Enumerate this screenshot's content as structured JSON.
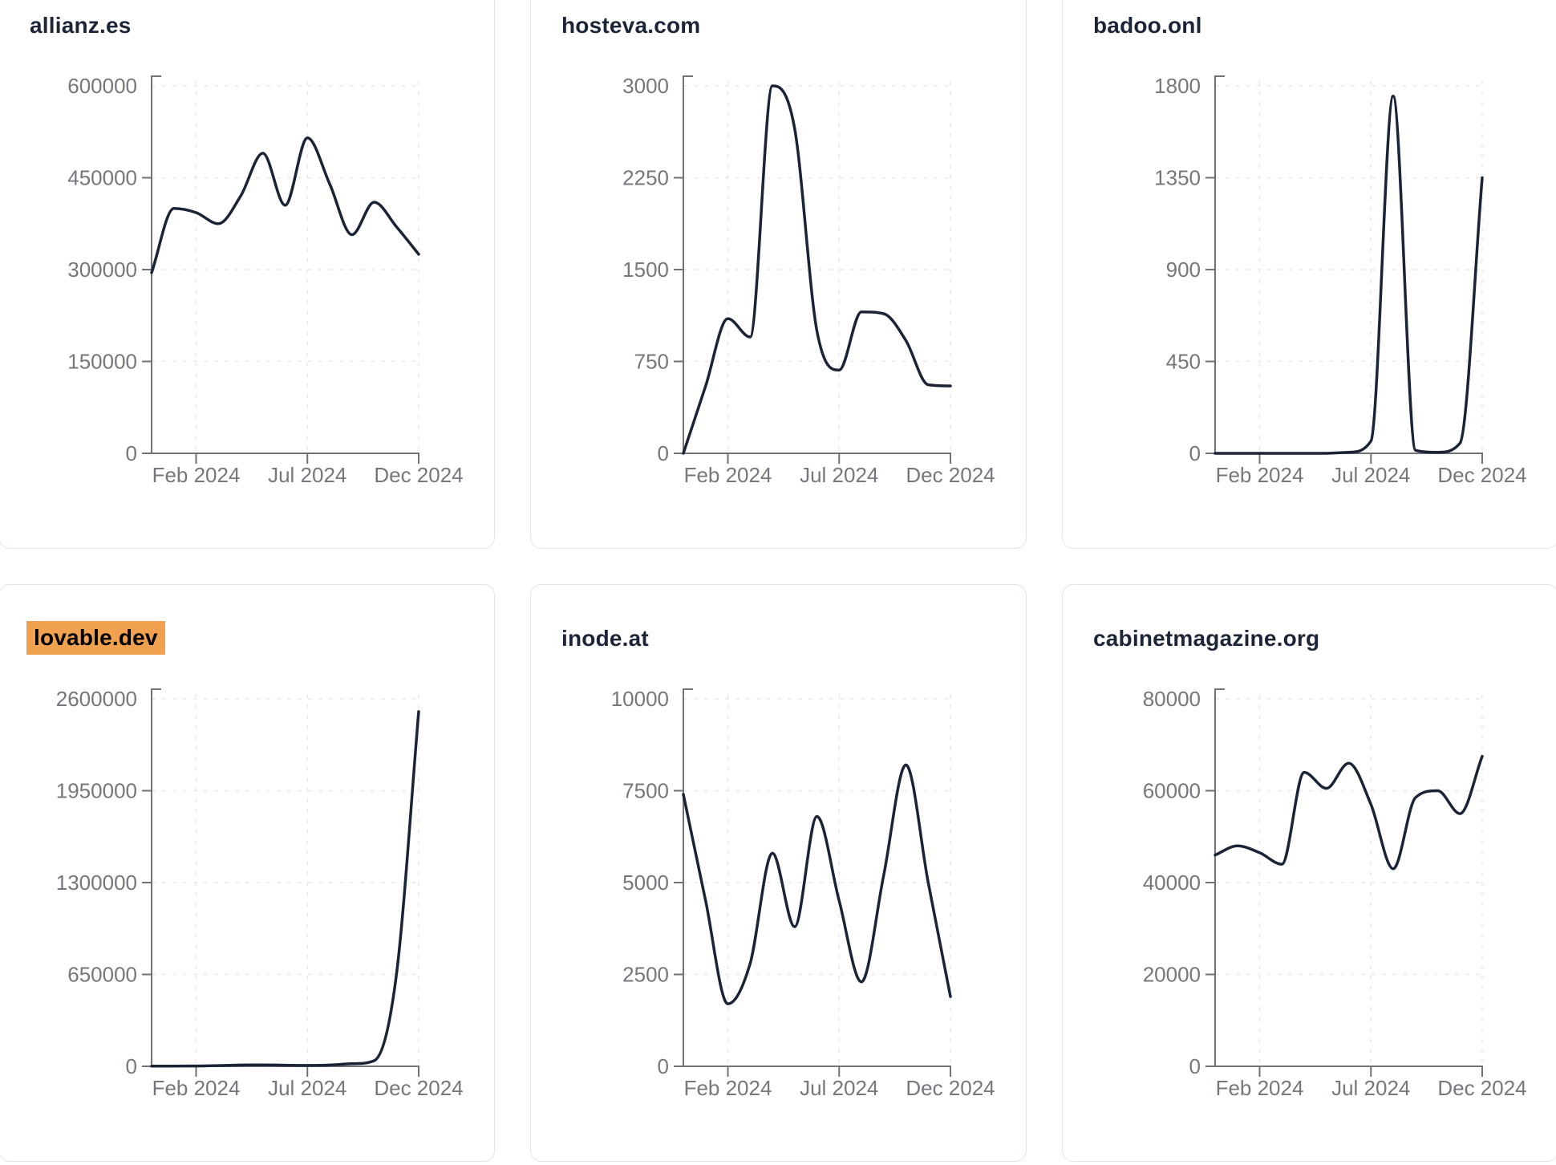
{
  "chart_data": {
    "type": "line",
    "layout": "small-multiples-grid-3x2",
    "x_axis": {
      "tick_labels": [
        "Feb 2024",
        "Jul 2024",
        "Dec 2024"
      ],
      "tick_point_indices": [
        2,
        7,
        12
      ],
      "range": "Dec 2023 - Dec 2024",
      "interval": "monthly",
      "points_per_series": 13,
      "grid": "dashed"
    },
    "style": {
      "line_color": "#1b2337",
      "grid_color": "#e9e9eb",
      "axis_color": "#6f7276",
      "tick_label_color": "#74777c",
      "title_color": "#1c2438",
      "highlight_bg": "#f0a150",
      "highlight_text": "#000000",
      "card_border": "#dfe4ee",
      "card_bg": "#ffffff",
      "page_bg": "#ffffff"
    },
    "charts": [
      {
        "title": "allianz.es",
        "highlighted": false,
        "y_max": 600000,
        "y_tick_labels": [
          "0",
          "150000",
          "300000",
          "450000",
          "600000"
        ],
        "values": [
          295000,
          400000,
          393000,
          375000,
          420000,
          490000,
          405000,
          515000,
          440000,
          357000,
          410000,
          370000,
          325000
        ]
      },
      {
        "title": "hosteva.com",
        "highlighted": false,
        "y_max": 3000,
        "y_tick_labels": [
          "0",
          "750",
          "1500",
          "2250",
          "3000"
        ],
        "values": [
          0,
          550,
          1100,
          950,
          3000,
          2650,
          1000,
          680,
          1155,
          1140,
          920,
          560,
          550
        ]
      },
      {
        "title": "badoo.onl",
        "highlighted": false,
        "y_max": 1800,
        "y_tick_labels": [
          "0",
          "450",
          "900",
          "1350",
          "1800"
        ],
        "values": [
          0,
          0,
          0,
          0,
          0,
          0,
          5,
          60,
          1750,
          15,
          5,
          50,
          1350
        ]
      },
      {
        "title": "lovable.dev",
        "highlighted": true,
        "y_max": 2600000,
        "y_tick_labels": [
          "0",
          "650000",
          "1300000",
          "1950000",
          "2600000"
        ],
        "values": [
          1000,
          1500,
          2500,
          5000,
          9000,
          10000,
          8000,
          6000,
          9000,
          18000,
          40000,
          650000,
          2510000
        ]
      },
      {
        "title": "inode.at",
        "highlighted": false,
        "y_max": 10000,
        "y_tick_labels": [
          "0",
          "2500",
          "5000",
          "7500",
          "10000"
        ],
        "values": [
          7400,
          4500,
          1700,
          2800,
          5800,
          3800,
          6800,
          4500,
          2300,
          5200,
          8200,
          5000,
          1900
        ]
      },
      {
        "title": "cabinetmagazine.org",
        "highlighted": false,
        "y_max": 80000,
        "y_tick_labels": [
          "0",
          "20000",
          "40000",
          "60000",
          "80000"
        ],
        "values": [
          46000,
          48000,
          46500,
          44000,
          64000,
          60500,
          66000,
          57000,
          43000,
          58500,
          60000,
          55000,
          67500
        ]
      }
    ]
  }
}
